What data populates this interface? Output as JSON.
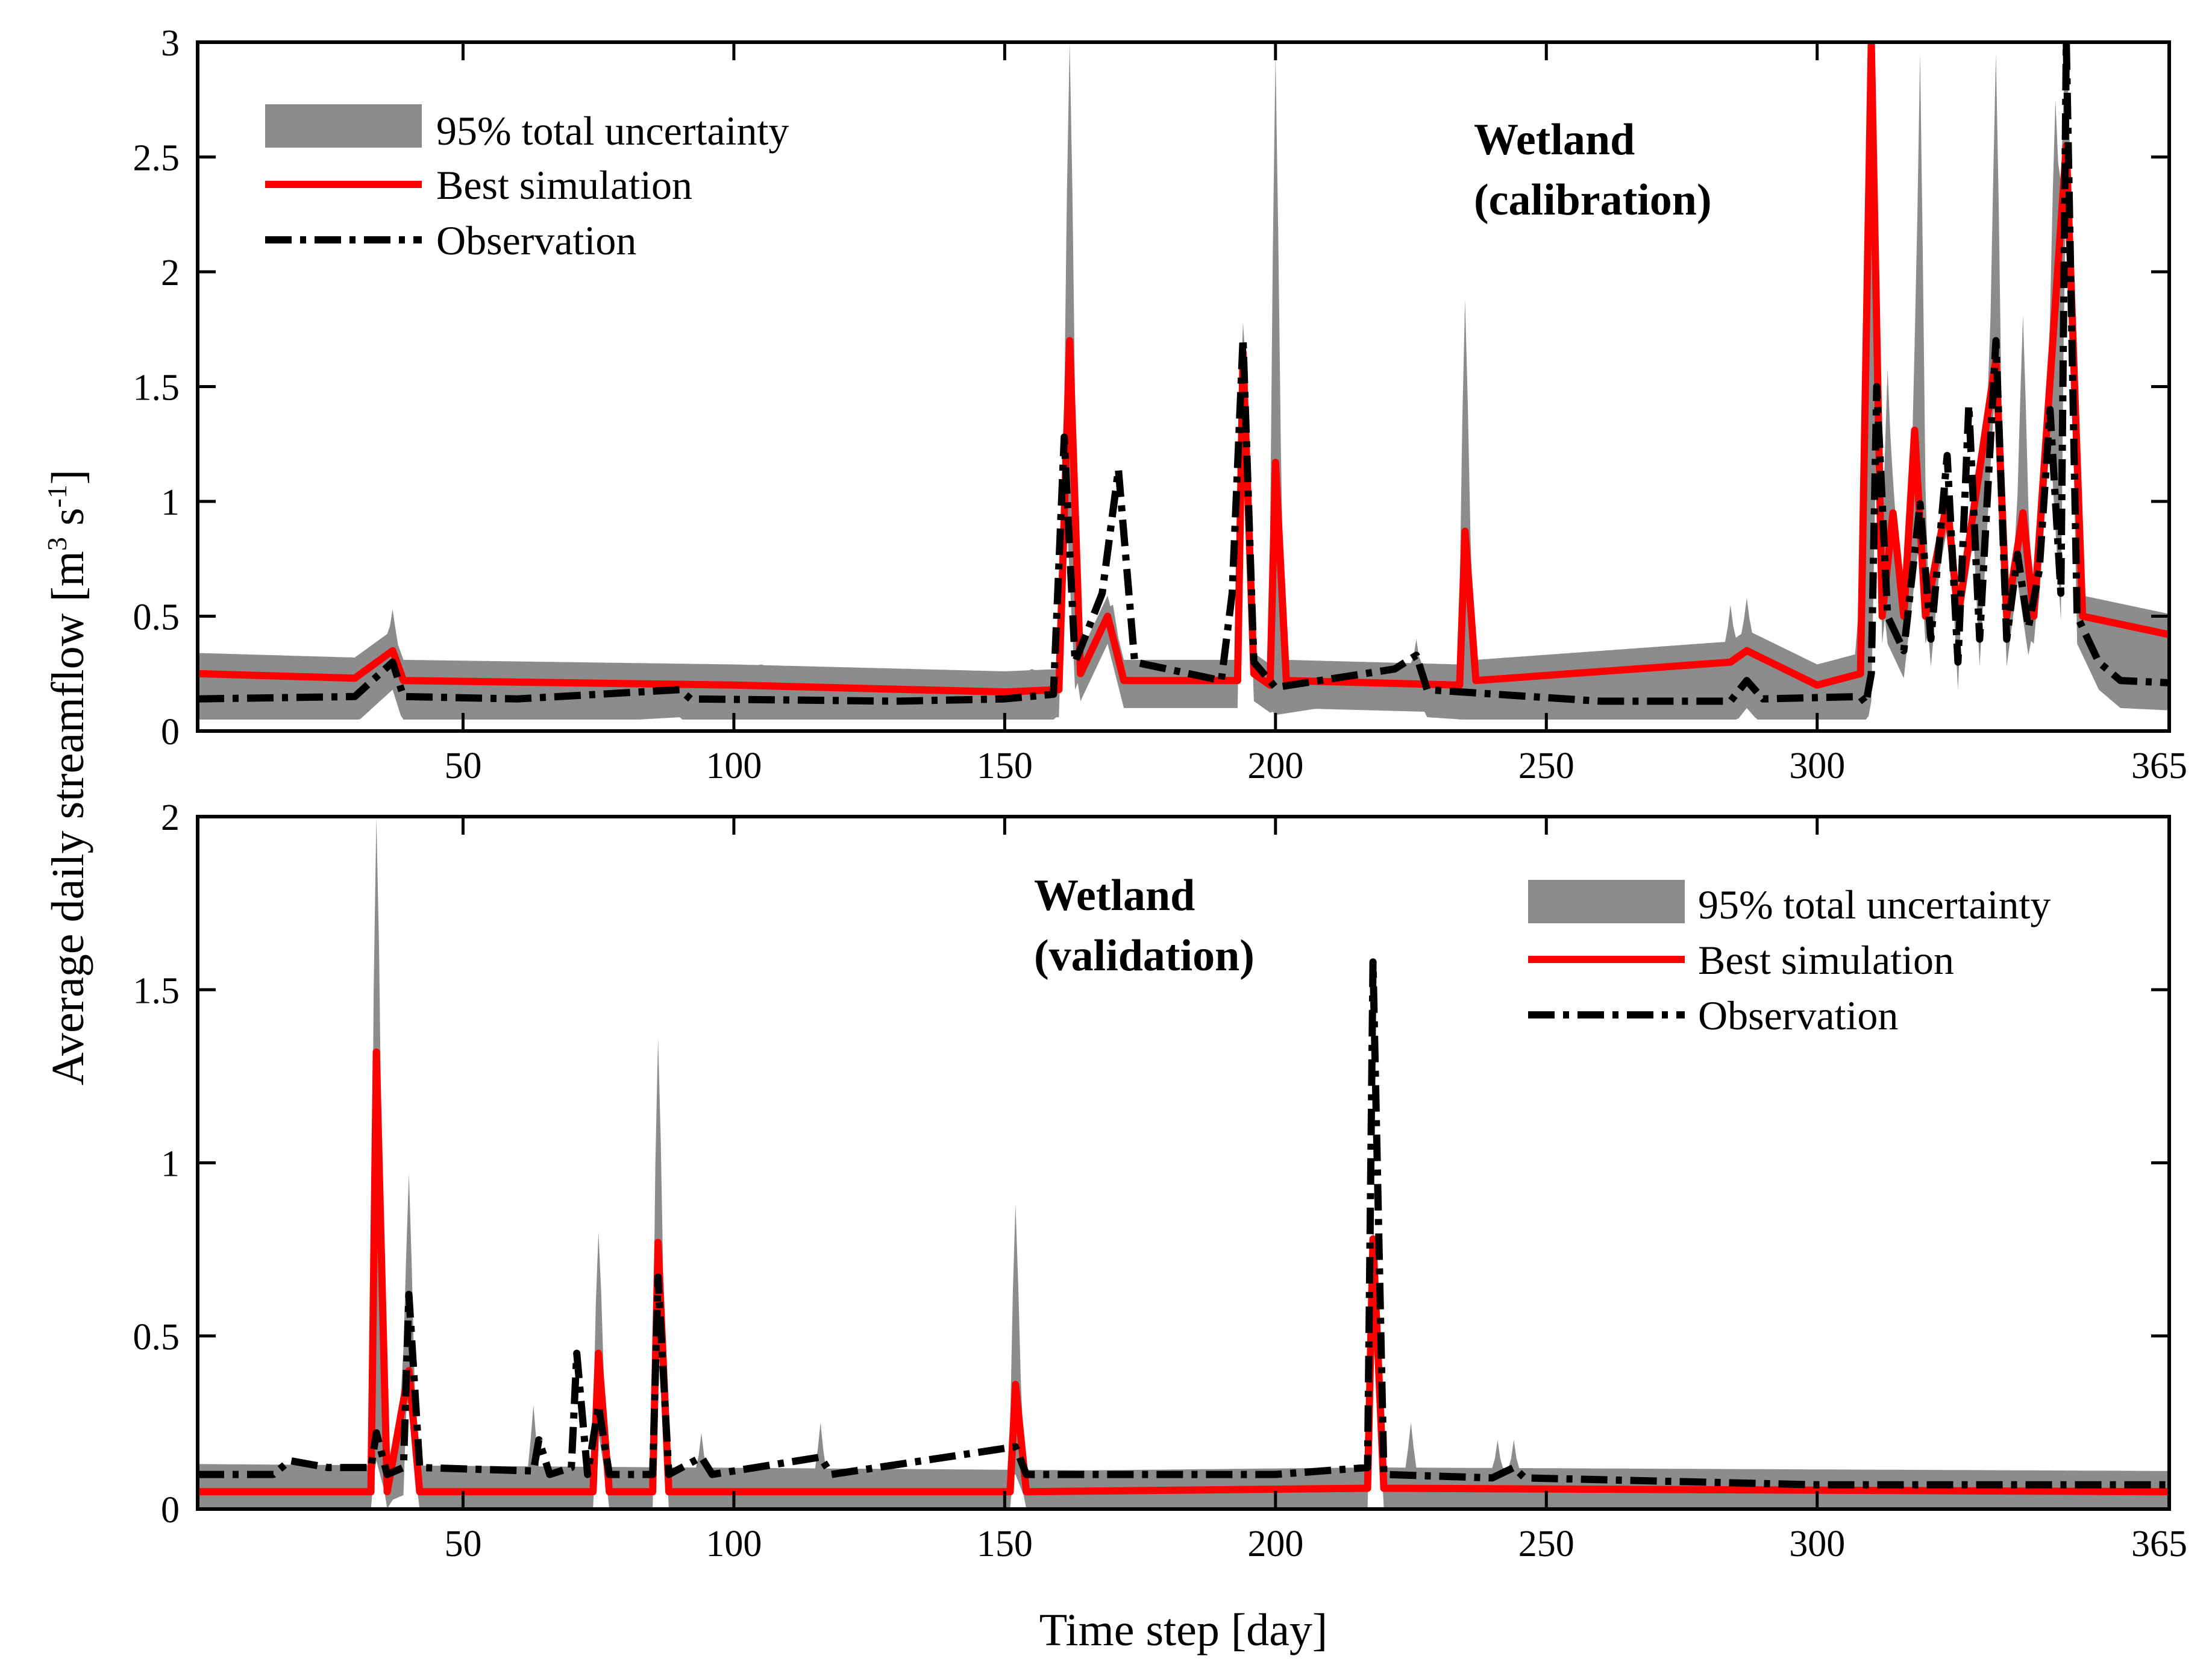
{
  "chart_data": [
    {
      "type": "line",
      "panel": "top",
      "annotation": [
        "Wetland",
        "(calibration)"
      ],
      "xlim": [
        1,
        365
      ],
      "ylim": [
        0,
        3
      ],
      "xticks": [
        50,
        100,
        150,
        200,
        250,
        300,
        365
      ],
      "yticks": [
        0,
        0.5,
        1,
        1.5,
        2,
        2.5,
        3
      ],
      "ytick_labels": [
        "0",
        "0.5",
        "1",
        "1.5",
        "2",
        "2.5",
        "3"
      ],
      "legend_position": "top-left",
      "legend": [
        "95% total uncertainty",
        "Best simulation",
        "Observation"
      ],
      "colors": {
        "band": "#8c8c8c",
        "best": "#ff0000",
        "obs": "#000000"
      },
      "series": [
        {
          "name": "Observation",
          "baseline": 0.14,
          "points": [
            [
              1,
              0.14
            ],
            [
              30,
              0.15
            ],
            [
              37,
              0.3
            ],
            [
              39,
              0.15
            ],
            [
              60,
              0.14
            ],
            [
              90,
              0.18
            ],
            [
              92,
              0.14
            ],
            [
              130,
              0.13
            ],
            [
              150,
              0.14
            ],
            [
              159,
              0.16
            ],
            [
              161,
              1.28
            ],
            [
              163,
              0.3
            ],
            [
              168,
              0.6
            ],
            [
              171,
              1.14
            ],
            [
              174,
              0.3
            ],
            [
              190,
              0.22
            ],
            [
              192,
              0.6
            ],
            [
              194,
              1.71
            ],
            [
              196,
              0.3
            ],
            [
              200,
              0.19
            ],
            [
              222,
              0.27
            ],
            [
              226,
              0.33
            ],
            [
              228,
              0.18
            ],
            [
              260,
              0.13
            ],
            [
              284,
              0.13
            ],
            [
              287,
              0.22
            ],
            [
              290,
              0.14
            ],
            [
              308,
              0.15
            ],
            [
              309,
              0.12
            ],
            [
              310,
              0.25
            ],
            [
              311,
              1.5
            ],
            [
              313,
              0.5
            ],
            [
              316,
              0.35
            ],
            [
              319,
              0.99
            ],
            [
              321,
              0.4
            ],
            [
              324,
              1.2
            ],
            [
              326,
              0.3
            ],
            [
              328,
              1.42
            ],
            [
              330,
              0.4
            ],
            [
              333,
              1.7
            ],
            [
              335,
              0.4
            ],
            [
              337,
              0.77
            ],
            [
              339,
              0.45
            ],
            [
              341,
              0.7
            ],
            [
              343,
              1.4
            ],
            [
              345,
              0.6
            ],
            [
              346,
              3.0
            ],
            [
              348,
              0.5
            ],
            [
              352,
              0.3
            ],
            [
              356,
              0.22
            ],
            [
              365,
              0.21
            ]
          ]
        },
        {
          "name": "Best simulation",
          "baseline": 0.22,
          "points": [
            [
              1,
              0.25
            ],
            [
              30,
              0.23
            ],
            [
              37,
              0.35
            ],
            [
              39,
              0.22
            ],
            [
              100,
              0.2
            ],
            [
              150,
              0.17
            ],
            [
              160,
              0.18
            ],
            [
              162,
              1.7
            ],
            [
              164,
              0.25
            ],
            [
              169,
              0.5
            ],
            [
              172,
              0.22
            ],
            [
              193,
              0.22
            ],
            [
              194,
              1.65
            ],
            [
              196,
              0.25
            ],
            [
              199,
              0.2
            ],
            [
              200,
              1.17
            ],
            [
              202,
              0.22
            ],
            [
              234,
              0.2
            ],
            [
              235,
              0.87
            ],
            [
              237,
              0.22
            ],
            [
              284,
              0.3
            ],
            [
              287,
              0.35
            ],
            [
              300,
              0.2
            ],
            [
              308,
              0.25
            ],
            [
              310,
              3.0
            ],
            [
              312,
              0.5
            ],
            [
              314,
              0.95
            ],
            [
              316,
              0.5
            ],
            [
              318,
              1.31
            ],
            [
              320,
              0.5
            ],
            [
              324,
              1.0
            ],
            [
              326,
              0.5
            ],
            [
              333,
              1.62
            ],
            [
              335,
              0.5
            ],
            [
              338,
              0.95
            ],
            [
              340,
              0.5
            ],
            [
              346,
              2.55
            ],
            [
              349,
              0.5
            ],
            [
              365,
              0.42
            ]
          ]
        },
        {
          "name": "95% total uncertainty",
          "upper_peaks": [
            [
              37,
              0.53
            ],
            [
              89,
              0.28
            ],
            [
              105,
              0.29
            ],
            [
              155,
              0.27
            ],
            [
              162,
              3.0
            ],
            [
              170,
              0.55
            ],
            [
              194,
              1.78
            ],
            [
              200,
              2.95
            ],
            [
              226,
              0.4
            ],
            [
              235,
              1.88
            ],
            [
              284,
              0.55
            ],
            [
              287,
              0.58
            ],
            [
              308,
              0.62
            ],
            [
              310,
              3.0
            ],
            [
              313,
              1.58
            ],
            [
              319,
              2.95
            ],
            [
              324,
              0.8
            ],
            [
              333,
              2.95
            ],
            [
              338,
              1.81
            ],
            [
              344,
              2.75
            ],
            [
              346,
              3.0
            ],
            [
              365,
              0.35
            ]
          ],
          "lower_baseline": 0.05
        }
      ]
    },
    {
      "type": "line",
      "panel": "bottom",
      "annotation": [
        "Wetland",
        "(validation)"
      ],
      "xlim": [
        1,
        365
      ],
      "ylim": [
        0,
        2
      ],
      "xticks": [
        50,
        100,
        150,
        200,
        250,
        300,
        365
      ],
      "yticks": [
        0,
        0.5,
        1,
        1.5,
        2
      ],
      "ytick_labels": [
        "0",
        "0.5",
        "1",
        "1.5",
        "2"
      ],
      "legend_position": "top-right",
      "legend": [
        "95% total uncertainty",
        "Best simulation",
        "Observation"
      ],
      "colors": {
        "band": "#8c8c8c",
        "best": "#ff0000",
        "obs": "#000000"
      },
      "series": [
        {
          "name": "Observation",
          "points": [
            [
              1,
              0.1
            ],
            [
              15,
              0.1
            ],
            [
              18,
              0.14
            ],
            [
              25,
              0.12
            ],
            [
              33,
              0.12
            ],
            [
              34,
              0.22
            ],
            [
              36,
              0.1
            ],
            [
              39,
              0.12
            ],
            [
              40,
              0.62
            ],
            [
              42,
              0.12
            ],
            [
              63,
              0.11
            ],
            [
              64,
              0.2
            ],
            [
              66,
              0.1
            ],
            [
              70,
              0.12
            ],
            [
              71,
              0.45
            ],
            [
              73,
              0.1
            ],
            [
              75,
              0.3
            ],
            [
              77,
              0.1
            ],
            [
              85,
              0.1
            ],
            [
              86,
              0.67
            ],
            [
              88,
              0.1
            ],
            [
              94,
              0.15
            ],
            [
              96,
              0.1
            ],
            [
              116,
              0.15
            ],
            [
              118,
              0.1
            ],
            [
              152,
              0.18
            ],
            [
              154,
              0.1
            ],
            [
              200,
              0.1
            ],
            [
              217,
              0.12
            ],
            [
              218,
              1.58
            ],
            [
              220,
              0.1
            ],
            [
              240,
              0.09
            ],
            [
              244,
              0.12
            ],
            [
              246,
              0.09
            ],
            [
              300,
              0.07
            ],
            [
              365,
              0.07
            ]
          ]
        },
        {
          "name": "Best simulation",
          "points": [
            [
              1,
              0.05
            ],
            [
              33,
              0.05
            ],
            [
              34,
              1.32
            ],
            [
              36,
              0.05
            ],
            [
              40,
              0.4
            ],
            [
              42,
              0.05
            ],
            [
              74,
              0.05
            ],
            [
              75,
              0.45
            ],
            [
              77,
              0.05
            ],
            [
              85,
              0.05
            ],
            [
              86,
              0.77
            ],
            [
              88,
              0.05
            ],
            [
              151,
              0.05
            ],
            [
              152,
              0.36
            ],
            [
              154,
              0.05
            ],
            [
              217,
              0.06
            ],
            [
              218,
              0.78
            ],
            [
              220,
              0.06
            ],
            [
              365,
              0.05
            ]
          ]
        },
        {
          "name": "95% total uncertainty",
          "upper_peaks": [
            [
              34,
              2.0
            ],
            [
              40,
              0.97
            ],
            [
              63,
              0.3
            ],
            [
              75,
              0.8
            ],
            [
              86,
              1.36
            ],
            [
              94,
              0.22
            ],
            [
              116,
              0.25
            ],
            [
              152,
              0.88
            ],
            [
              218,
              0.6
            ],
            [
              225,
              0.25
            ],
            [
              241,
              0.2
            ],
            [
              244,
              0.2
            ]
          ],
          "upper_baseline_start": 0.13,
          "upper_baseline_end": 0.09,
          "lower_baseline": 0.0
        }
      ]
    }
  ],
  "axes": {
    "xlabel": "Time step [day]",
    "ylabel_main": "Average daily streamflow  [m",
    "ylabel_sup1": "3",
    "ylabel_mid": " s",
    "ylabel_sup2": "-1",
    "ylabel_end": "]"
  }
}
